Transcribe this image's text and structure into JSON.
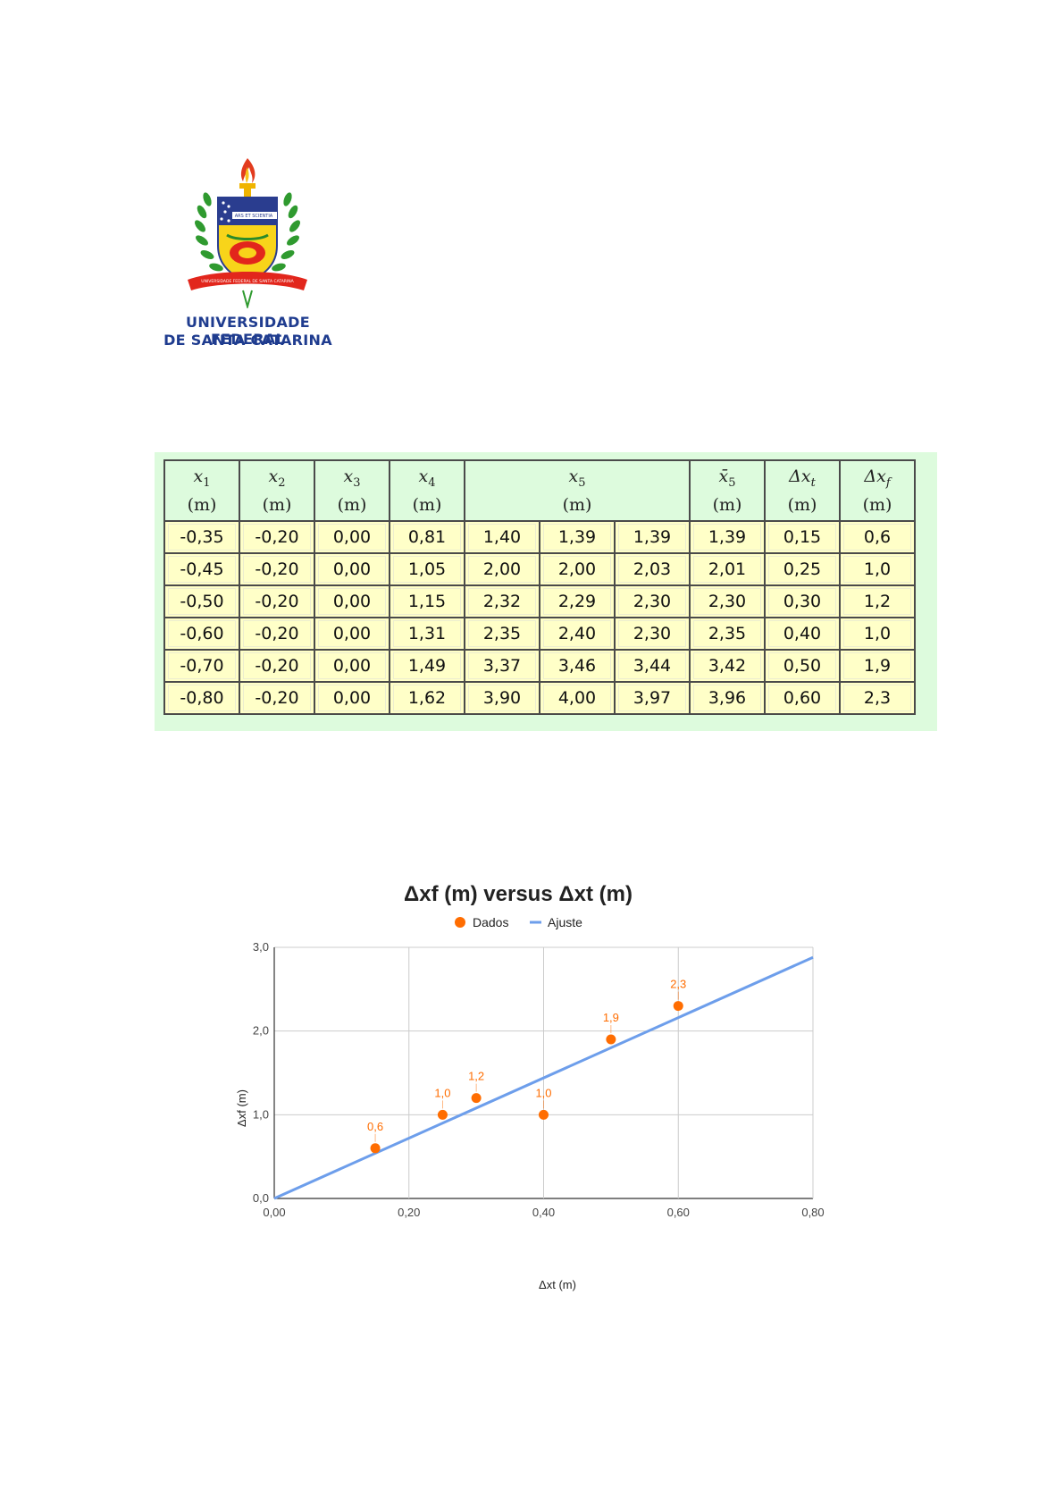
{
  "logo": {
    "line1": "UNIVERSIDADE FEDERAL",
    "line2": "DE SANTA CATARINA",
    "motto": "ARS ET SCIENTIA",
    "ribbon": "UNIVERSIDADE FEDERAL DE SANTA CATARINA"
  },
  "table": {
    "headers": [
      {
        "sym": "x",
        "sub": "1",
        "unit": "(m)"
      },
      {
        "sym": "x",
        "sub": "2",
        "unit": "(m)"
      },
      {
        "sym": "x",
        "sub": "3",
        "unit": "(m)"
      },
      {
        "sym": "x",
        "sub": "4",
        "unit": "(m)"
      },
      {
        "sym": "x",
        "sub": "5",
        "unit": "(m)"
      },
      {
        "sym": "x̄",
        "sub": "5",
        "unit": "(m)"
      },
      {
        "sym": "Δx",
        "sub": "t",
        "unit": "(m)"
      },
      {
        "sym": "Δx",
        "sub": "f",
        "unit": "(m)"
      }
    ],
    "rows": [
      [
        "-0,35",
        "-0,20",
        "0,00",
        "0,81",
        "1,40",
        "1,39",
        "1,39",
        "1,39",
        "0,15",
        "0,6"
      ],
      [
        "-0,45",
        "-0,20",
        "0,00",
        "1,05",
        "2,00",
        "2,00",
        "2,03",
        "2,01",
        "0,25",
        "1,0"
      ],
      [
        "-0,50",
        "-0,20",
        "0,00",
        "1,15",
        "2,32",
        "2,29",
        "2,30",
        "2,30",
        "0,30",
        "1,2"
      ],
      [
        "-0,60",
        "-0,20",
        "0,00",
        "1,31",
        "2,35",
        "2,40",
        "2,30",
        "2,35",
        "0,40",
        "1,0"
      ],
      [
        "-0,70",
        "-0,20",
        "0,00",
        "1,49",
        "3,37",
        "3,46",
        "3,44",
        "3,42",
        "0,50",
        "1,9"
      ],
      [
        "-0,80",
        "-0,20",
        "0,00",
        "1,62",
        "3,90",
        "4,00",
        "3,97",
        "3,96",
        "0,60",
        "2,3"
      ]
    ]
  },
  "chart_data": {
    "type": "scatter",
    "title": "Δxf (m) versus Δxt (m)",
    "xlabel": "Δxt (m)",
    "ylabel": "Δxf (m)",
    "xlim": [
      0,
      0.8
    ],
    "ylim": [
      0,
      3.0
    ],
    "x_ticks": [
      "0,00",
      "0,20",
      "0,40",
      "0,60",
      "0,80"
    ],
    "x_tick_values": [
      0,
      0.2,
      0.4,
      0.6,
      0.8
    ],
    "y_ticks": [
      "0,0",
      "1,0",
      "2,0",
      "3,0"
    ],
    "y_tick_values": [
      0,
      1,
      2,
      3
    ],
    "grid": true,
    "legend_position": "top",
    "series": [
      {
        "name": "Dados",
        "kind": "points",
        "color": "#ff6d01",
        "x": [
          0.15,
          0.25,
          0.3,
          0.4,
          0.5,
          0.6
        ],
        "y": [
          0.6,
          1.0,
          1.2,
          1.0,
          1.9,
          2.3
        ],
        "labels": [
          "0,6",
          "1,0",
          "1,2",
          "1,0",
          "1,9",
          "2,3"
        ]
      },
      {
        "name": "Ajuste",
        "kind": "line",
        "color": "#6d9eeb",
        "x": [
          0,
          0.8
        ],
        "y": [
          0,
          2.88
        ]
      }
    ]
  }
}
